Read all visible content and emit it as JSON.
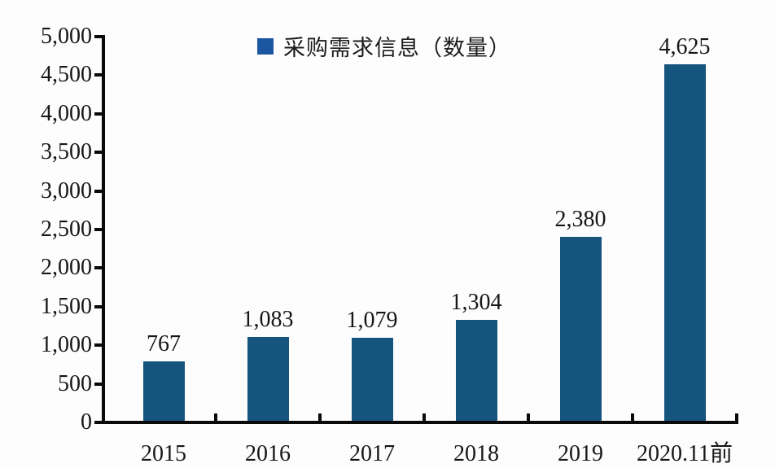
{
  "chart_data": {
    "type": "bar",
    "legend": {
      "label": "采购需求信息（数量）",
      "color": "#1B57A0",
      "position": "top-center"
    },
    "categories": [
      "2015",
      "2016",
      "2017",
      "2018",
      "2019",
      "2020.11前"
    ],
    "values": [
      767,
      1083,
      1079,
      1304,
      2380,
      4625
    ],
    "value_labels": [
      "767",
      "1,083",
      "1,079",
      "1,304",
      "2,380",
      "4,625"
    ],
    "bar_color": "#14547D",
    "axis_color": "#0a0a0a",
    "text_color": "#161616",
    "ylim": [
      0,
      5000
    ],
    "ytick_step": 500,
    "ytick_labels": [
      "0",
      "500",
      "1,000",
      "1,500",
      "2,000",
      "2,500",
      "3,000",
      "3,500",
      "4,000",
      "4,500",
      "5,000"
    ],
    "grid": false,
    "xlabel": "",
    "ylabel": ""
  }
}
